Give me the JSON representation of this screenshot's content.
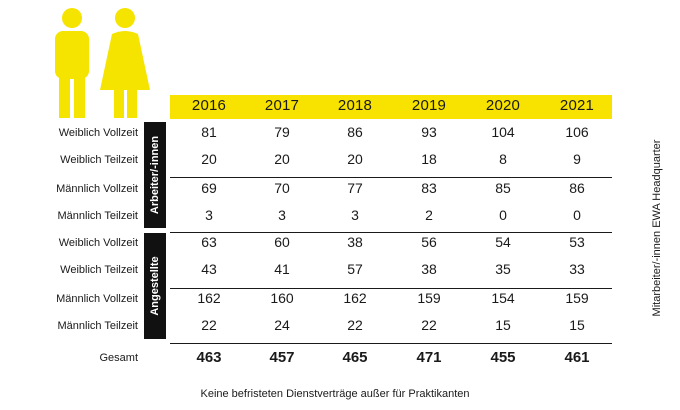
{
  "chart_data": {
    "type": "table",
    "columns": [
      "2016",
      "2017",
      "2018",
      "2019",
      "2020",
      "2021"
    ],
    "groups": [
      {
        "label": "Arbeiter/-innen",
        "rows": [
          {
            "label": "Weiblich Vollzeit",
            "values": [
              81,
              79,
              86,
              93,
              104,
              106
            ]
          },
          {
            "label": "Weiblich Teilzeit",
            "values": [
              20,
              20,
              20,
              18,
              8,
              9
            ]
          },
          {
            "label": "Männlich Vollzeit",
            "values": [
              69,
              70,
              77,
              83,
              85,
              86
            ]
          },
          {
            "label": "Männlich Teilzeit",
            "values": [
              3,
              3,
              3,
              2,
              0,
              0
            ]
          }
        ]
      },
      {
        "label": "Angestellte",
        "rows": [
          {
            "label": "Weiblich Vollzeit",
            "values": [
              63,
              60,
              38,
              56,
              54,
              53
            ]
          },
          {
            "label": "Weiblich Teilzeit",
            "values": [
              43,
              41,
              57,
              38,
              35,
              33
            ]
          },
          {
            "label": "Männlich Vollzeit",
            "values": [
              162,
              160,
              162,
              159,
              154,
              159
            ]
          },
          {
            "label": "Männlich Teilzeit",
            "values": [
              22,
              24,
              22,
              22,
              15,
              15
            ]
          }
        ]
      }
    ],
    "total": {
      "label": "Gesamt",
      "values": [
        463,
        457,
        465,
        471,
        455,
        461
      ]
    },
    "side_label": "Mitarbeiter/-innen EWA Headquarter",
    "footnote": "Keine befristeten Dienstverträge außer für Praktikanten"
  },
  "colors": {
    "accent_yellow": "#f7e200",
    "figure_yellow": "#f5e300",
    "text": "#1a1a1a",
    "group_box": "#111111"
  },
  "icons": [
    "male-figure-icon",
    "female-figure-icon"
  ]
}
